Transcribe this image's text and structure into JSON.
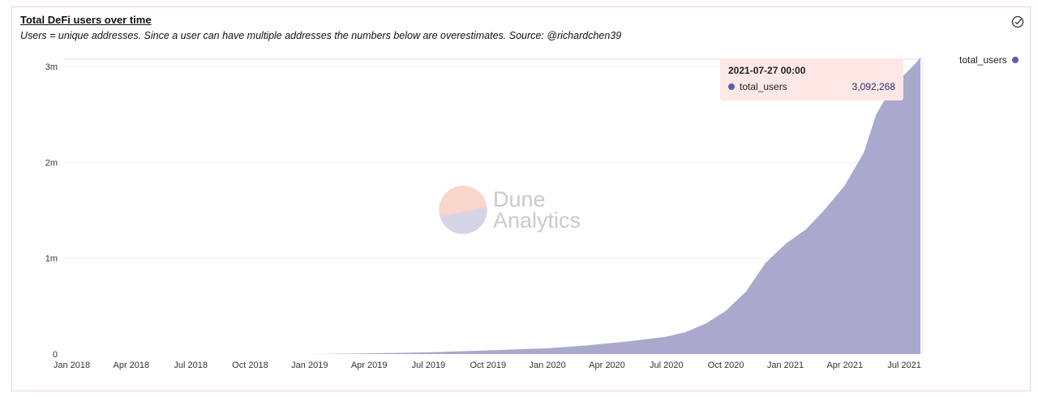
{
  "header": {
    "title": "Total DeFi users over time",
    "subtitle": "Users = unique addresses. Since a user can have multiple addresses the numbers below are overestimates. Source: @richardchen39"
  },
  "icons": {
    "status": "check-circle-icon"
  },
  "colors": {
    "area": "#a9a8cd",
    "series": "#5f5ca8",
    "tooltip_bg": "#fde8e6",
    "border": "#f3cfc7",
    "watermark_top": "#f9d5cc",
    "watermark_bottom": "#d6d5e8"
  },
  "legend": {
    "label": "total_users",
    "placement": "top-right"
  },
  "tooltip": {
    "date": "2021-07-27 00:00",
    "series": "total_users",
    "value": "3,092,268"
  },
  "watermark": {
    "line1": "Dune",
    "line2": "Analytics"
  },
  "chart_data": {
    "type": "area",
    "title": "Total DeFi users over time",
    "xlabel": "",
    "ylabel": "",
    "x_ticks": [
      "Jan 2018",
      "Apr 2018",
      "Jul 2018",
      "Oct 2018",
      "Jan 2019",
      "Apr 2019",
      "Jul 2019",
      "Oct 2019",
      "Jan 2020",
      "Apr 2020",
      "Jul 2020",
      "Oct 2020",
      "Jan 2021",
      "Apr 2021",
      "Jul 2021"
    ],
    "y_ticks": [
      "0",
      "1m",
      "2m",
      "3m"
    ],
    "ylim": [
      0,
      3000000
    ],
    "xlim": [
      "2018-01-01",
      "2021-07-27"
    ],
    "grid": true,
    "series": [
      {
        "name": "total_users",
        "points": [
          [
            "2018-01-01",
            0
          ],
          [
            "2018-07-01",
            0
          ],
          [
            "2019-01-01",
            0
          ],
          [
            "2019-02-01",
            2000
          ],
          [
            "2019-04-01",
            8000
          ],
          [
            "2019-07-01",
            18000
          ],
          [
            "2019-10-01",
            38000
          ],
          [
            "2020-01-01",
            60000
          ],
          [
            "2020-03-01",
            90000
          ],
          [
            "2020-05-01",
            130000
          ],
          [
            "2020-07-01",
            180000
          ],
          [
            "2020-08-01",
            230000
          ],
          [
            "2020-09-01",
            320000
          ],
          [
            "2020-10-01",
            450000
          ],
          [
            "2020-11-01",
            650000
          ],
          [
            "2020-12-01",
            950000
          ],
          [
            "2021-01-01",
            1150000
          ],
          [
            "2021-02-01",
            1300000
          ],
          [
            "2021-03-01",
            1500000
          ],
          [
            "2021-04-01",
            1750000
          ],
          [
            "2021-05-01",
            2100000
          ],
          [
            "2021-05-20",
            2500000
          ],
          [
            "2021-06-15",
            2800000
          ],
          [
            "2021-07-15",
            3000000
          ],
          [
            "2021-07-27",
            3092268
          ]
        ]
      }
    ]
  }
}
